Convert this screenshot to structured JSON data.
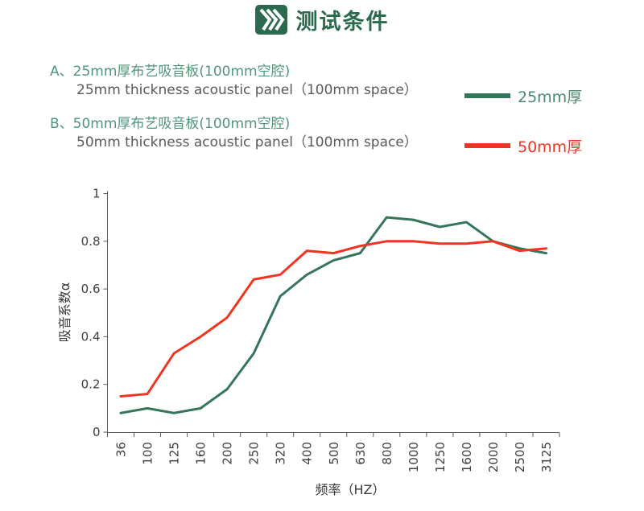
{
  "header": {
    "title": "测试条件",
    "icon": "triple-chevron-icon"
  },
  "description": {
    "item_a": {
      "label_cn": "A、25mm厚布艺吸音板(100mm空腔)",
      "label_en": "25mm thickness acoustic panel（100mm space）"
    },
    "item_b": {
      "label_cn": "B、50mm厚布艺吸音板(100mm空腔)",
      "label_en": "50mm thickness acoustic panel（100mm space）"
    }
  },
  "chart_data": {
    "type": "line",
    "title": "",
    "xlabel": "频率（HZ）",
    "ylabel": "吸音系数α",
    "ylim": [
      0,
      1
    ],
    "yticks": [
      0,
      0.2,
      0.4,
      0.6,
      0.8,
      1
    ],
    "grid": false,
    "legend_position": "upper-right-outside",
    "categories": [
      "36",
      "100",
      "125",
      "160",
      "200",
      "250",
      "320",
      "400",
      "500",
      "630",
      "800",
      "1000",
      "1250",
      "1600",
      "2000",
      "2500",
      "3125"
    ],
    "series": [
      {
        "name": "25mm厚",
        "color": "#35755a",
        "text_color": "#4a8b6d",
        "values": [
          0.08,
          0.1,
          0.08,
          0.1,
          0.18,
          0.33,
          0.57,
          0.66,
          0.72,
          0.75,
          0.9,
          0.89,
          0.86,
          0.88,
          0.8,
          0.77,
          0.75
        ]
      },
      {
        "name": "50mm厚",
        "color": "#ee3524",
        "text_color": "#ee3524",
        "values": [
          0.15,
          0.16,
          0.33,
          0.4,
          0.48,
          0.64,
          0.66,
          0.76,
          0.75,
          0.78,
          0.8,
          0.8,
          0.79,
          0.79,
          0.8,
          0.76,
          0.77
        ]
      }
    ]
  },
  "colors": {
    "title_green": "#2c6a50",
    "desc_green": "#4f9578",
    "desc_gray": "#58595b",
    "axis": "#58595b",
    "tick_label": "#3f3f3f",
    "axis_title": "#3a3a3a"
  }
}
